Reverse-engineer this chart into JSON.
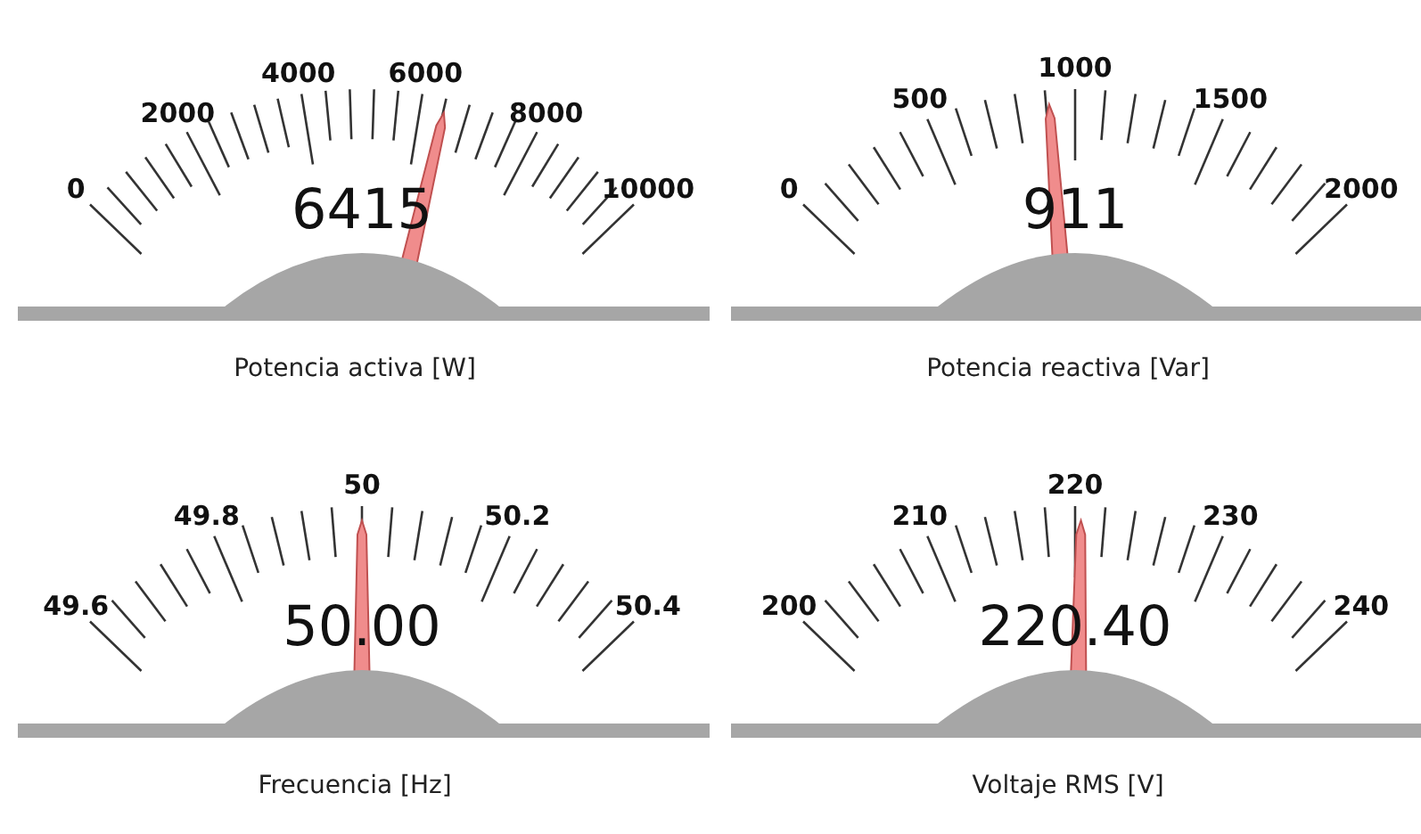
{
  "chart_data": [
    {
      "type": "other",
      "title": "Potencia activa [W]",
      "values": [
        6415
      ],
      "value_labels": [
        "6415"
      ],
      "color": "#f08c8c",
      "annotations": [
        "0",
        "2000",
        "4000",
        "6000",
        "8000",
        "10000"
      ]
    },
    {
      "type": "other",
      "title": "Potencia reactiva [Var]",
      "values": [
        911
      ],
      "value_labels": [
        "911"
      ],
      "color": "#f08c8c",
      "annotations": [
        "0",
        "500",
        "1000",
        "1500",
        "2000"
      ]
    },
    {
      "type": "other",
      "title": "Frecuencia [Hz]",
      "values": [
        50.0
      ],
      "value_labels": [
        "50.00"
      ],
      "color": "#f08c8c",
      "annotations": [
        "49.6",
        "49.8",
        "50",
        "50.2",
        "50.4"
      ]
    },
    {
      "type": "other",
      "title": "Voltaje RMS [V]",
      "values": [
        220.4
      ],
      "value_labels": [
        "220.40"
      ],
      "color": "#f08c8c",
      "annotations": [
        "200",
        "210",
        "220",
        "230",
        "240"
      ]
    }
  ]
}
